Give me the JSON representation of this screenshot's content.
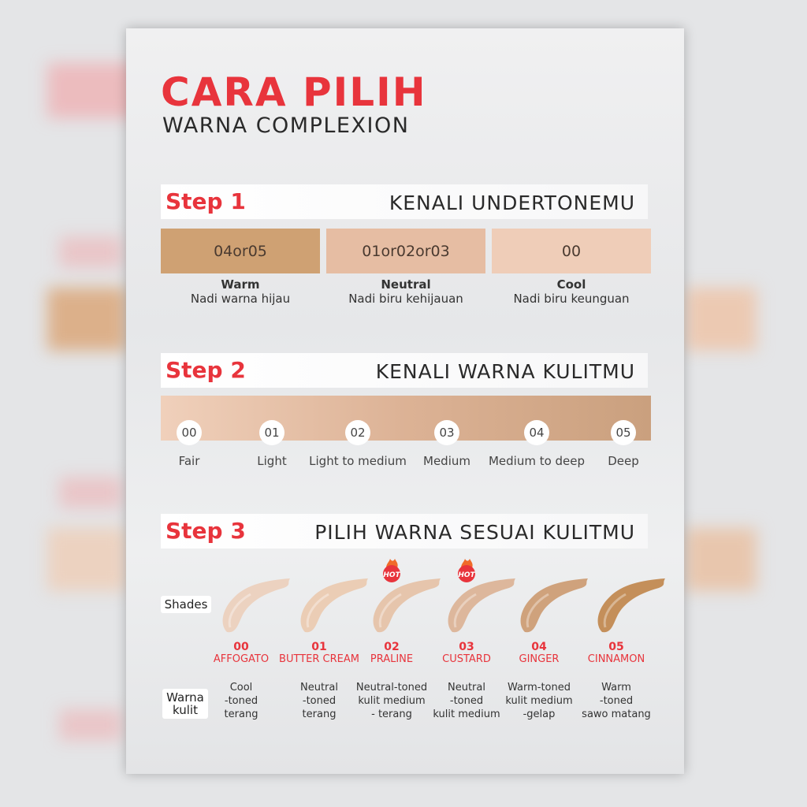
{
  "header": {
    "title": "CARA PILIH",
    "subtitle": "WARNA COMPLEXION"
  },
  "colors": {
    "accent": "#e8343c",
    "warm": "#cfa173",
    "neutral": "#e6bda3",
    "cool": "#efcdb8"
  },
  "step1": {
    "label": "Step 1",
    "title": "KENALI UNDERTONEMU",
    "options": [
      {
        "codes": "04or05",
        "name": "Warm",
        "desc": "Nadi warna hijau"
      },
      {
        "codes": "01or02or03",
        "name": "Neutral",
        "desc": "Nadi biru kehijauan"
      },
      {
        "codes": "00",
        "name": "Cool",
        "desc": "Nadi biru keunguan"
      }
    ]
  },
  "step2": {
    "label": "Step 2",
    "title": "KENALI WARNA KULITMU",
    "levels": [
      {
        "code": "00",
        "name": "Fair"
      },
      {
        "code": "01",
        "name": "Light"
      },
      {
        "code": "02",
        "name": "Light to medium"
      },
      {
        "code": "03",
        "name": "Medium"
      },
      {
        "code": "04",
        "name": "Medium to deep"
      },
      {
        "code": "05",
        "name": "Deep"
      }
    ]
  },
  "step3": {
    "label": "Step 3",
    "title": "PILIH WARNA SESUAI KULITMU",
    "shades_label": "Shades",
    "skin_label": "Warna kulit",
    "hot_label": "HOT",
    "shades": [
      {
        "code": "00",
        "name": "AFFOGATO",
        "desc": [
          "Cool",
          "-toned",
          "terang"
        ],
        "color": "#ecd2c0",
        "hot": false
      },
      {
        "code": "01",
        "name": "BUTTER CREAM",
        "desc": [
          "Neutral",
          "-toned",
          "terang"
        ],
        "color": "#ebcdb5",
        "hot": false
      },
      {
        "code": "02",
        "name": "PRALINE",
        "desc": [
          "Neutral-toned",
          "kulit medium",
          "- terang"
        ],
        "color": "#e6c5ac",
        "hot": true
      },
      {
        "code": "03",
        "name": "CUSTARD",
        "desc": [
          "Neutral",
          "-toned",
          "kulit medium"
        ],
        "color": "#ddb79c",
        "hot": true
      },
      {
        "code": "04",
        "name": "GINGER",
        "desc": [
          "Warm-toned",
          "kulit medium",
          "-gelap"
        ],
        "color": "#cfa27c",
        "hot": false
      },
      {
        "code": "05",
        "name": "CINNAMON",
        "desc": [
          "Warm",
          "-toned",
          "sawo matang"
        ],
        "color": "#c48f5a",
        "hot": false
      }
    ]
  }
}
